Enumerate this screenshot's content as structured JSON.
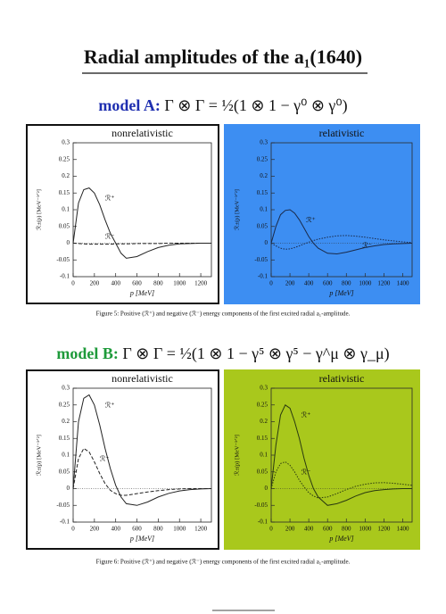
{
  "title": "Radial amplitudes of the a₁(1640)",
  "sections": [
    {
      "heading_label": "model A:",
      "heading_formula": "Γ ⊗ Γ = ½(1 ⊗ 1 − γ⁰ ⊗ γ⁰)",
      "heading_color": "#1f2fb0",
      "caption": "Figure 5: Positive (ℛ⁺) and negative (ℛ⁻) energy components of the first excited radial a₁-amplitude."
    },
    {
      "heading_label": "model B:",
      "heading_formula": "Γ ⊗ Γ = ½(1 ⊗ 1 − γ⁵ ⊗ γ⁵ − γ^μ ⊗ γ_μ)",
      "heading_color": "#1e9a3a",
      "caption": "Figure 6: Positive (ℛ⁺) and negative (ℛ⁻) energy components of the first excited radial a₁-amplitude."
    }
  ],
  "chart_data": [
    {
      "type": "line",
      "title": "nonrelativistic",
      "x_label": "p [MeV]",
      "y_label": "ℛ±(p) [MeV⁻³ᐟ²]",
      "background": "#ffffff",
      "xlim": [
        0,
        1300
      ],
      "xticks": [
        0,
        200,
        400,
        600,
        800,
        1000,
        1200
      ],
      "ylim": [
        -0.1,
        0.3
      ],
      "yticks": [
        -0.1,
        -0.05,
        0,
        0.05,
        0.1,
        0.15,
        0.2,
        0.25,
        0.3
      ],
      "series": [
        {
          "name": "ℛ⁺",
          "color": "#222222",
          "dash": "solid",
          "x": [
            0,
            50,
            100,
            150,
            200,
            250,
            300,
            350,
            400,
            450,
            500,
            600,
            700,
            800,
            900,
            1000,
            1100,
            1200,
            1300
          ],
          "values": [
            0,
            0.12,
            0.16,
            0.165,
            0.15,
            0.115,
            0.07,
            0.03,
            0,
            -0.03,
            -0.045,
            -0.04,
            -0.025,
            -0.013,
            -0.006,
            -0.002,
            -0.001,
            0,
            0
          ]
        },
        {
          "name": "ℛ⁻",
          "color": "#222222",
          "dash": "dashed",
          "x": [
            0,
            50,
            100,
            150,
            200,
            250,
            300,
            350,
            400,
            450,
            500,
            600,
            700,
            800,
            900,
            1000,
            1100,
            1200,
            1300
          ],
          "values": [
            0,
            -0.001,
            -0.002,
            -0.003,
            -0.003,
            -0.003,
            -0.003,
            -0.003,
            -0.002,
            -0.002,
            -0.002,
            -0.001,
            -0.001,
            -0.001,
            0,
            0,
            0,
            0,
            0
          ]
        }
      ]
    },
    {
      "type": "line",
      "title": "relativistic",
      "x_label": "p [MeV]",
      "y_label": "ℛ±(p) [MeV⁻³ᐟ²]",
      "background": "#3d8ef2",
      "xlim": [
        0,
        1500
      ],
      "xticks": [
        0,
        200,
        400,
        600,
        800,
        1000,
        1200,
        1400
      ],
      "ylim": [
        -0.1,
        0.3
      ],
      "yticks": [
        -0.1,
        -0.05,
        0,
        0.05,
        0.1,
        0.15,
        0.2,
        0.25,
        0.3
      ],
      "series": [
        {
          "name": "ℛ⁺",
          "color": "#1a2a4a",
          "dash": "solid",
          "x": [
            0,
            50,
            100,
            150,
            200,
            250,
            300,
            350,
            400,
            450,
            500,
            600,
            700,
            800,
            900,
            1000,
            1100,
            1200,
            1300,
            1400,
            1500
          ],
          "values": [
            0,
            0.05,
            0.085,
            0.098,
            0.1,
            0.09,
            0.07,
            0.045,
            0.02,
            0,
            -0.015,
            -0.03,
            -0.032,
            -0.027,
            -0.02,
            -0.013,
            -0.008,
            -0.004,
            -0.002,
            -0.001,
            0
          ]
        },
        {
          "name": "ℛ⁻",
          "color": "#1a2a4a",
          "dash": "dotted",
          "x": [
            0,
            50,
            100,
            150,
            200,
            250,
            300,
            350,
            400,
            450,
            500,
            600,
            700,
            800,
            900,
            1000,
            1100,
            1200,
            1300,
            1400,
            1500
          ],
          "values": [
            0,
            -0.008,
            -0.015,
            -0.018,
            -0.017,
            -0.013,
            -0.008,
            -0.002,
            0.003,
            0.008,
            0.012,
            0.018,
            0.022,
            0.023,
            0.021,
            0.018,
            0.014,
            0.01,
            0.007,
            0.004,
            0.002
          ]
        }
      ]
    },
    {
      "type": "line",
      "title": "nonrelativistic",
      "x_label": "p [MeV]",
      "y_label": "ℛ±(p) [MeV⁻³ᐟ²]",
      "background": "#ffffff",
      "xlim": [
        0,
        1300
      ],
      "xticks": [
        0,
        200,
        400,
        600,
        800,
        1000,
        1200
      ],
      "ylim": [
        -0.1,
        0.3
      ],
      "yticks": [
        -0.1,
        -0.05,
        0,
        0.05,
        0.1,
        0.15,
        0.2,
        0.25,
        0.3
      ],
      "series": [
        {
          "name": "ℛ⁺",
          "color": "#222222",
          "dash": "solid",
          "x": [
            0,
            50,
            100,
            150,
            200,
            250,
            300,
            350,
            400,
            450,
            500,
            600,
            700,
            800,
            900,
            1000,
            1100,
            1200,
            1300
          ],
          "values": [
            0,
            0.2,
            0.27,
            0.28,
            0.25,
            0.19,
            0.12,
            0.06,
            0.01,
            -0.025,
            -0.045,
            -0.05,
            -0.04,
            -0.025,
            -0.014,
            -0.007,
            -0.003,
            -0.001,
            0
          ]
        },
        {
          "name": "ℛ⁻",
          "color": "#222222",
          "dash": "dashed",
          "x": [
            0,
            50,
            100,
            150,
            200,
            250,
            300,
            350,
            400,
            450,
            500,
            600,
            700,
            800,
            900,
            1000,
            1100,
            1200,
            1300
          ],
          "values": [
            0,
            0.09,
            0.12,
            0.11,
            0.08,
            0.045,
            0.015,
            -0.005,
            -0.015,
            -0.02,
            -0.02,
            -0.015,
            -0.01,
            -0.006,
            -0.003,
            -0.001,
            0,
            0,
            0
          ]
        }
      ]
    },
    {
      "type": "line",
      "title": "relativistic",
      "x_label": "p [MeV]",
      "y_label": "ℛ±(p) [MeV⁻³ᐟ²]",
      "background": "#a9c81c",
      "xlim": [
        0,
        1500
      ],
      "xticks": [
        0,
        200,
        400,
        600,
        800,
        1000,
        1200,
        1400
      ],
      "ylim": [
        -0.1,
        0.3
      ],
      "yticks": [
        -0.1,
        -0.05,
        0,
        0.05,
        0.1,
        0.15,
        0.2,
        0.25,
        0.3
      ],
      "series": [
        {
          "name": "ℛ⁺",
          "color": "#2a3a10",
          "dash": "solid",
          "x": [
            0,
            50,
            100,
            150,
            200,
            250,
            300,
            350,
            400,
            450,
            500,
            600,
            700,
            800,
            900,
            1000,
            1100,
            1200,
            1300,
            1400,
            1500
          ],
          "values": [
            0,
            0.13,
            0.22,
            0.25,
            0.24,
            0.2,
            0.15,
            0.09,
            0.04,
            0,
            -0.025,
            -0.05,
            -0.045,
            -0.035,
            -0.022,
            -0.012,
            -0.006,
            -0.003,
            -0.001,
            0,
            0
          ]
        },
        {
          "name": "ℛ⁻",
          "color": "#2a3a10",
          "dash": "dotted",
          "x": [
            0,
            50,
            100,
            150,
            200,
            250,
            300,
            350,
            400,
            450,
            500,
            600,
            700,
            800,
            900,
            1000,
            1100,
            1200,
            1300,
            1400,
            1500
          ],
          "values": [
            0,
            0.05,
            0.075,
            0.08,
            0.07,
            0.05,
            0.025,
            0.005,
            -0.012,
            -0.022,
            -0.028,
            -0.025,
            -0.015,
            -0.003,
            0.007,
            0.013,
            0.017,
            0.018,
            0.016,
            0.013,
            0.01
          ]
        }
      ]
    }
  ]
}
